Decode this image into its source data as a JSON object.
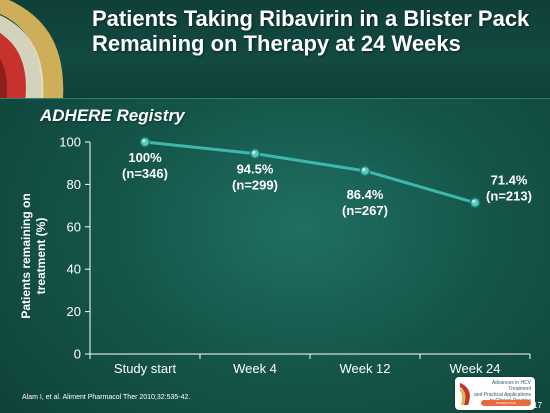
{
  "slide": {
    "title": "Patients Taking Ribavirin in a Blister Pack Remaining on Therapy at 24 Weeks",
    "subtitle": "ADHERE Registry",
    "citation": "Alam I, et al. Aliment Pharmacol Ther 2010;32:535-42.",
    "page_number": "17",
    "badge": {
      "line1": "Advances in HCV Treatment",
      "line2": "and Practical Applications",
      "line3": "to Clinical Practice",
      "bar_text": "INTERACTIVE"
    },
    "logo_icon": "swoosh-logo-icon",
    "colors": {
      "background": "#155549",
      "line": "#3cb8ad",
      "marker": "#5cc9bf",
      "text": "#ffffff"
    }
  },
  "chart_data": {
    "type": "line",
    "categories": [
      "Study start",
      "Week 4",
      "Week 12",
      "Week 24"
    ],
    "series": [
      {
        "values": [
          100,
          94.5,
          86.4,
          71.4
        ],
        "labels": [
          [
            "100%",
            "(n=346)"
          ],
          [
            "94.5%",
            "(n=299)"
          ],
          [
            "86.4%",
            "(n=267)"
          ],
          [
            "71.4%",
            "(n=213)"
          ]
        ]
      }
    ],
    "ylabel": [
      "Patients remaining on",
      "treatment (%)"
    ],
    "ylim": [
      0,
      100
    ],
    "yticks": [
      0,
      20,
      40,
      60,
      80,
      100
    ],
    "grid": false,
    "legend": "none"
  }
}
